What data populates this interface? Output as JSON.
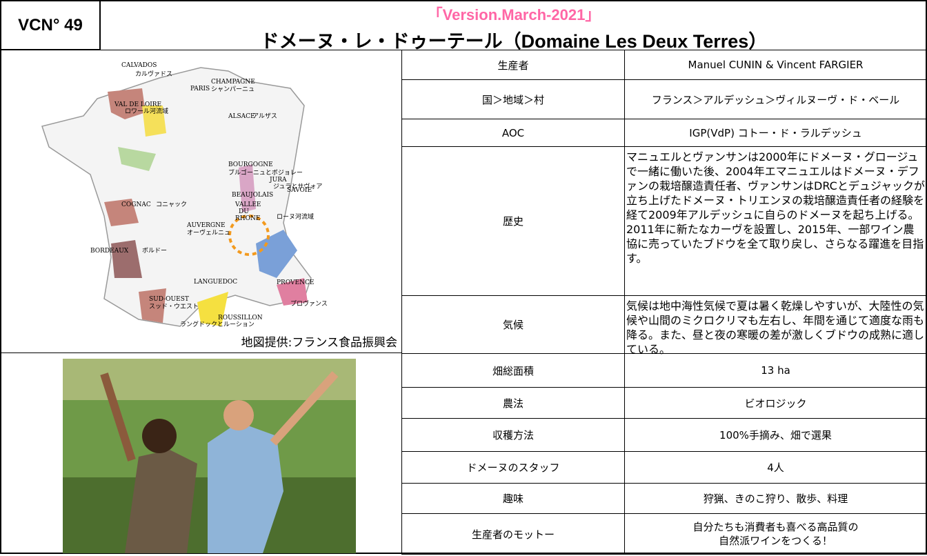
{
  "header": {
    "id": "VCN° 49",
    "version": "「Version.March-2021」",
    "title": "ドメーヌ・レ・ドゥーテール（Domaine Les Deux Terres）"
  },
  "map": {
    "credit": "地図提供:フランス食品振興会",
    "labels": [
      "CHAMPAGNE",
      "シャンパーニュ",
      "CALVADOS",
      "カルヴァドス",
      "PARIS",
      "ALSACE",
      "アルザス",
      "VAL DE LOIRE",
      "ロワール河流域",
      "BOURGOGNE",
      "ブルゴーニュとボジョレー",
      "JURA",
      "ジュラとサヴォア",
      "SAVOIE",
      "BEAUJOLAIS",
      "COGNAC",
      "コニャック",
      "AUVERGNE",
      "オーヴェルニュ",
      "VALLEE",
      "DU",
      "RHONE",
      "ローヌ河流域",
      "BORDEAUX",
      "ボルドー",
      "LANGUEDOC",
      "PROVENCE",
      "プロヴァンス",
      "SUD-OUEST",
      "スッド・ウエスト",
      "ROUSSILLON",
      "ラングドックとルーション"
    ]
  },
  "table": {
    "rows": [
      [
        "生産者",
        "Manuel CUNIN & Vincent FARGIER"
      ],
      [
        "国＞地域＞村",
        "フランス＞アルデッシュ＞ヴィルヌーヴ・ド・ベール"
      ],
      [
        "AOC",
        "IGP(VdP) コトー・ド・ラルデッシュ"
      ],
      [
        "歴史",
        "マニュエルとヴァンサンは2000年にドメーヌ・グロージュで一緒に働いた後、2004年エマニュエルはドメーヌ・デファンの栽培醸造責任者、ヴァンサンはDRCとデュジャックが立ち上げたドメーヌ・トリエンヌの栽培醸造責任者の経験を経て2009年アルデッシュに自らのドメーヌを起ち上げる。2011年に新たなカーヴを設置し、2015年、一部ワイン農協に売っていたブドウを全て取り戻し、さらなる躍進を目指す。"
      ],
      [
        "気候",
        "気候は地中海性気候で夏は暑く乾燥しやすいが、大陸性の気候や山間のミクロクリマも左右し、年間を通じて適度な雨も降る。また、昼と夜の寒暖の差が激しくブドウの成熟に適している。"
      ],
      [
        "畑総面積",
        "13 ha"
      ],
      [
        "農法",
        "ビオロジック"
      ],
      [
        "収穫方法",
        "100%手摘み、畑で選果"
      ],
      [
        "ドメーヌのスタッフ",
        "4人"
      ],
      [
        "趣味",
        "狩猟、きのこ狩り、散歩、料理"
      ],
      [
        "生産者のモットー",
        "自分たちも消費者も喜べる高品質の\n自然派ワインをつくる！"
      ]
    ]
  }
}
